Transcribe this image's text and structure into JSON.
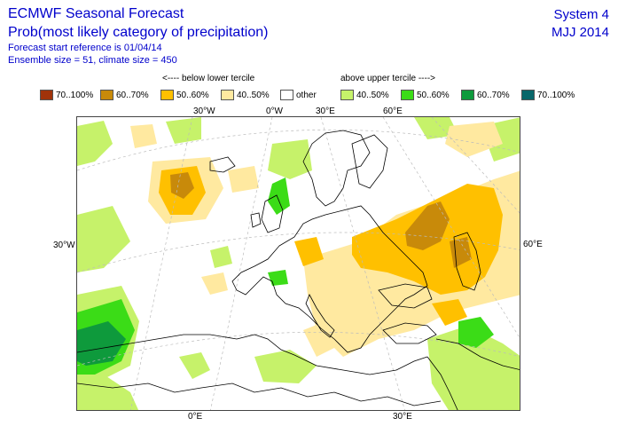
{
  "header": {
    "title": "ECMWF Seasonal Forecast",
    "subtitle": "Prob(most likely category of precipitation)",
    "start_ref": "Forecast start reference is 01/04/14",
    "ensemble": "Ensemble size = 51, climate size = 450",
    "system": "System 4",
    "period": "MJJ 2014"
  },
  "legend": {
    "below_label": "<---- below lower tercile",
    "above_label": "above upper tercile ---->",
    "items": [
      {
        "label": "70..100%",
        "color": "#a0330a"
      },
      {
        "label": "60..70%",
        "color": "#c88a0a"
      },
      {
        "label": "50..60%",
        "color": "#ffc000"
      },
      {
        "label": "40..50%",
        "color": "#ffe9a0"
      },
      {
        "label": "other",
        "color": "#ffffff"
      },
      {
        "label": "40..50%",
        "color": "#c6f26a"
      },
      {
        "label": "50..60%",
        "color": "#3bdc17"
      },
      {
        "label": "60..70%",
        "color": "#0e9a3c"
      },
      {
        "label": "70..100%",
        "color": "#08676a"
      }
    ]
  },
  "axes": {
    "top": [
      "30°W",
      "0°W",
      "30°E",
      "60°E"
    ],
    "left": "30°W",
    "right": "60°E",
    "bottom": [
      "0°E",
      "30°E"
    ]
  }
}
